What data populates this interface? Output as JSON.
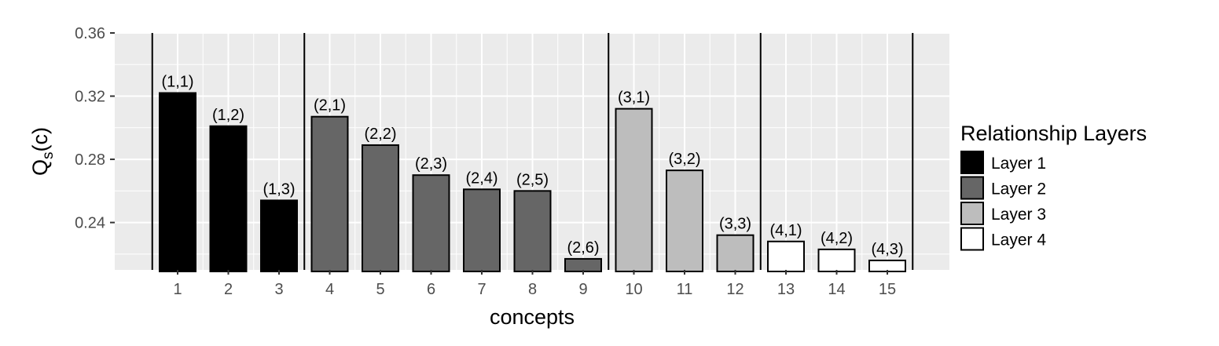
{
  "chart_data": {
    "type": "bar",
    "xlabel": "concepts",
    "ylabel": "Q",
    "ylabel_subscript": "s",
    "ylabel_suffix": "(c)",
    "ylim": [
      0.21,
      0.36
    ],
    "yticks": [
      "0.24",
      "0.28",
      "0.32",
      "0.36"
    ],
    "ytick_values": [
      0.24,
      0.28,
      0.32,
      0.36
    ],
    "categories": [
      "1",
      "2",
      "3",
      "4",
      "5",
      "6",
      "7",
      "8",
      "9",
      "10",
      "11",
      "12",
      "13",
      "14",
      "15"
    ],
    "values": [
      0.322,
      0.301,
      0.254,
      0.307,
      0.289,
      0.27,
      0.261,
      0.26,
      0.217,
      0.312,
      0.273,
      0.232,
      0.228,
      0.223,
      0.216
    ],
    "labels": [
      "(1,1)",
      "(1,2)",
      "(1,3)",
      "(2,1)",
      "(2,2)",
      "(2,3)",
      "(2,4)",
      "(2,5)",
      "(2,6)",
      "(3,1)",
      "(3,2)",
      "(3,3)",
      "(4,1)",
      "(4,2)",
      "(4,3)"
    ],
    "layers": [
      1,
      1,
      1,
      2,
      2,
      2,
      2,
      2,
      2,
      3,
      3,
      3,
      4,
      4,
      4
    ],
    "layer_separators_after": [
      0,
      3,
      9,
      12,
      15
    ],
    "legend": {
      "title": "Relationship Layers",
      "position": "right",
      "items": [
        {
          "label": "Layer 1",
          "color": "#000000"
        },
        {
          "label": "Layer 2",
          "color": "#666666"
        },
        {
          "label": "Layer 3",
          "color": "#bdbdbd"
        },
        {
          "label": "Layer 4",
          "color": "#ffffff"
        }
      ]
    },
    "panel_background": "#ebebeb",
    "grid": true
  }
}
